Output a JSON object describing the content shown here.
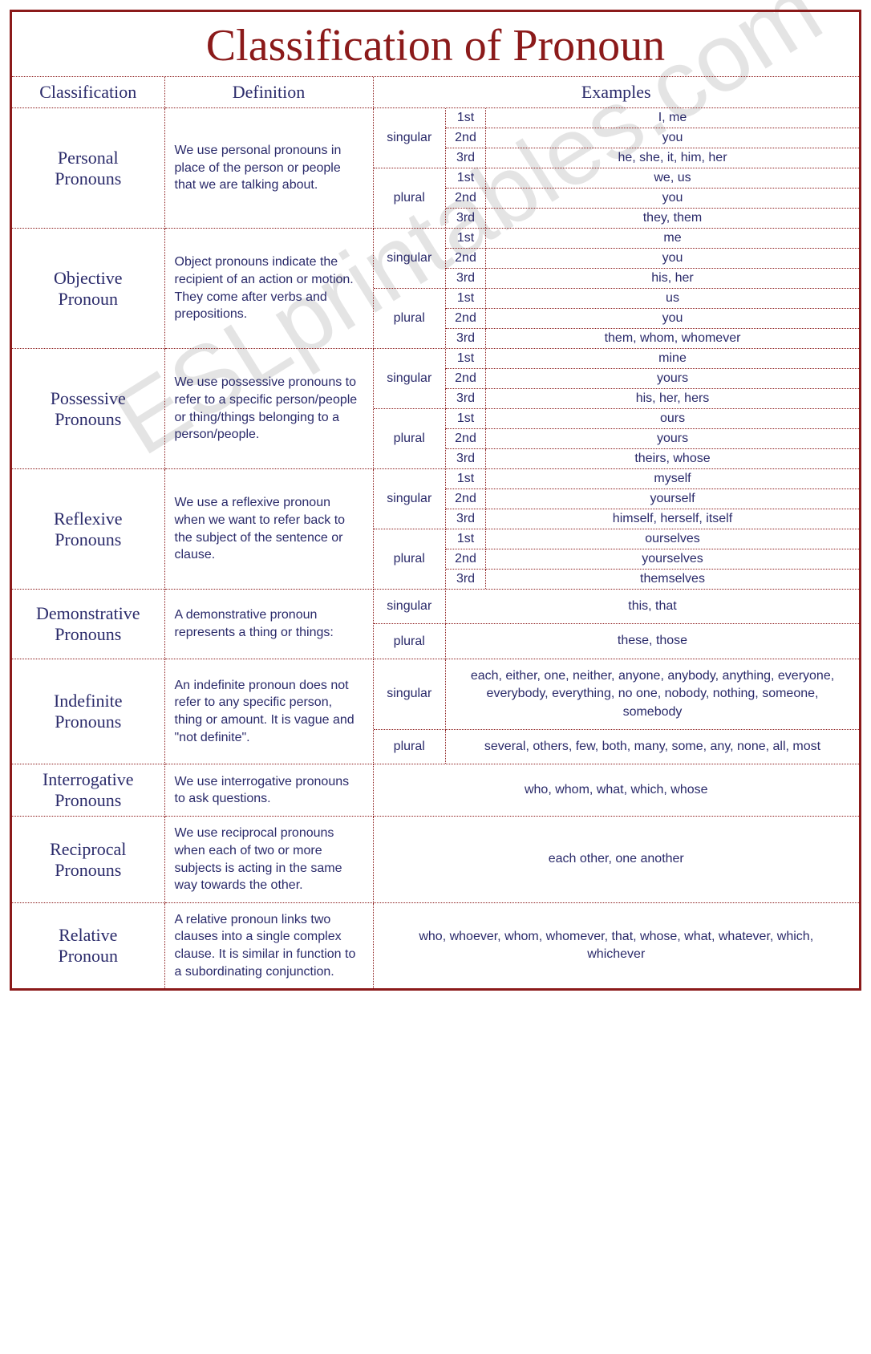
{
  "title": "Classification of Pronoun",
  "headers": {
    "c1": "Classification",
    "c2": "Definition",
    "c3": "Examples"
  },
  "number_labels": {
    "singular": "singular",
    "plural": "plural",
    "p1": "1st",
    "p2": "2nd",
    "p3": "3rd"
  },
  "watermark": "ESLprintables.com",
  "rows": [
    {
      "name": "Personal Pronouns",
      "def": "We use personal pronouns in place of the person or people that we are talking about.",
      "type": "full",
      "singular": [
        "I, me",
        "you",
        "he, she, it, him,  her"
      ],
      "plural": [
        "we, us",
        "you",
        "they, them"
      ]
    },
    {
      "name": "Objective Pronoun",
      "def": "Object pronouns indicate the recipient of an action or motion. They come after verbs and prepositions.",
      "type": "full",
      "singular": [
        "me",
        "you",
        "his, her"
      ],
      "plural": [
        "us",
        "you",
        "them, whom, whomever"
      ]
    },
    {
      "name": "Possessive Pronouns",
      "def": "We use possessive pronouns to refer to a specific person/people or thing/things belonging to a person/people.",
      "type": "full",
      "singular": [
        "mine",
        "yours",
        "his, her, hers"
      ],
      "plural": [
        "ours",
        "yours",
        "theirs, whose"
      ]
    },
    {
      "name": "Reflexive Pronouns",
      "def": "We use a reflexive pronoun when we want to refer back to the subject of the sentence or clause.",
      "type": "full",
      "singular": [
        "myself",
        "yourself",
        "himself, herself, itself"
      ],
      "plural": [
        "ourselves",
        "yourselves",
        "themselves"
      ]
    },
    {
      "name": "Demonstrative Pronouns",
      "def": "A demonstrative pronoun represents a thing or things:",
      "type": "sp",
      "singular_ex": "this, that",
      "plural_ex": "these, those"
    },
    {
      "name": "Indefinite Pronouns",
      "def": "An indefinite pronoun does not refer to any specific person, thing or amount. It is vague and \"not definite\".",
      "type": "sp",
      "singular_ex": "each, either, one, neither, anyone, anybody, anything, everyone, everybody, everything, no one, nobody, nothing, someone, somebody",
      "plural_ex": "several, others, few, both, many, some, any, none, all, most"
    },
    {
      "name": "Interrogative Pronouns",
      "def": "We use interrogative pronouns to ask questions.",
      "type": "simple",
      "ex": "who, whom, what, which, whose"
    },
    {
      "name": "Reciprocal Pronouns",
      "def": "We use reciprocal pronouns when each of two or more subjects is acting in the same way towards the other.",
      "type": "simple",
      "ex": "each other, one another"
    },
    {
      "name": "Relative Pronoun",
      "def": "A relative pronoun links two clauses into a single complex clause. It is similar in function to a subordinating conjunction.",
      "type": "simple",
      "ex": "who, whoever, whom, whomever, that, whose, what, whatever, which, whichever"
    }
  ]
}
